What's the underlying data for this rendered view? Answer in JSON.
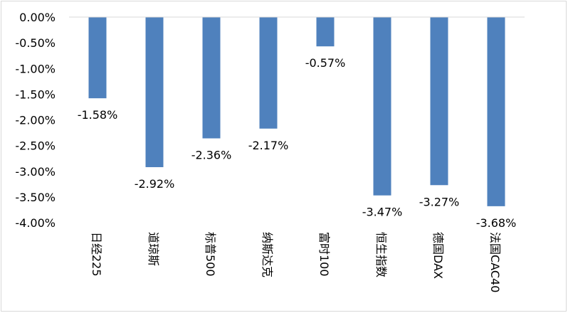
{
  "chart_data": {
    "type": "bar",
    "categories": [
      "日经225",
      "道琼斯",
      "标普500",
      "纳斯达克",
      "富时100",
      "恒生指数",
      "德国DAX",
      "法国CAC40"
    ],
    "values": [
      -1.58,
      -2.92,
      -2.36,
      -2.17,
      -0.57,
      -3.47,
      -3.27,
      -3.68
    ],
    "data_labels": [
      "-1.58%",
      "-2.92%",
      "-2.36%",
      "-2.17%",
      "-0.57%",
      "-3.47%",
      "-3.27%",
      "-3.68%"
    ],
    "yticks": [
      0,
      -0.5,
      -1,
      -1.5,
      -2,
      -2.5,
      -3,
      -3.5,
      -4
    ],
    "ytick_labels": [
      "0.00%",
      "-0.50%",
      "-1.00%",
      "-1.50%",
      "-2.00%",
      "-2.50%",
      "-3.00%",
      "-3.50%",
      "-4.00%"
    ],
    "ylim": [
      -4,
      0
    ],
    "title": "",
    "xlabel": "",
    "ylabel": "",
    "bar_color": "#4f81bd",
    "axis_color": "#d9d9d9",
    "grid": false,
    "legend": "none"
  }
}
